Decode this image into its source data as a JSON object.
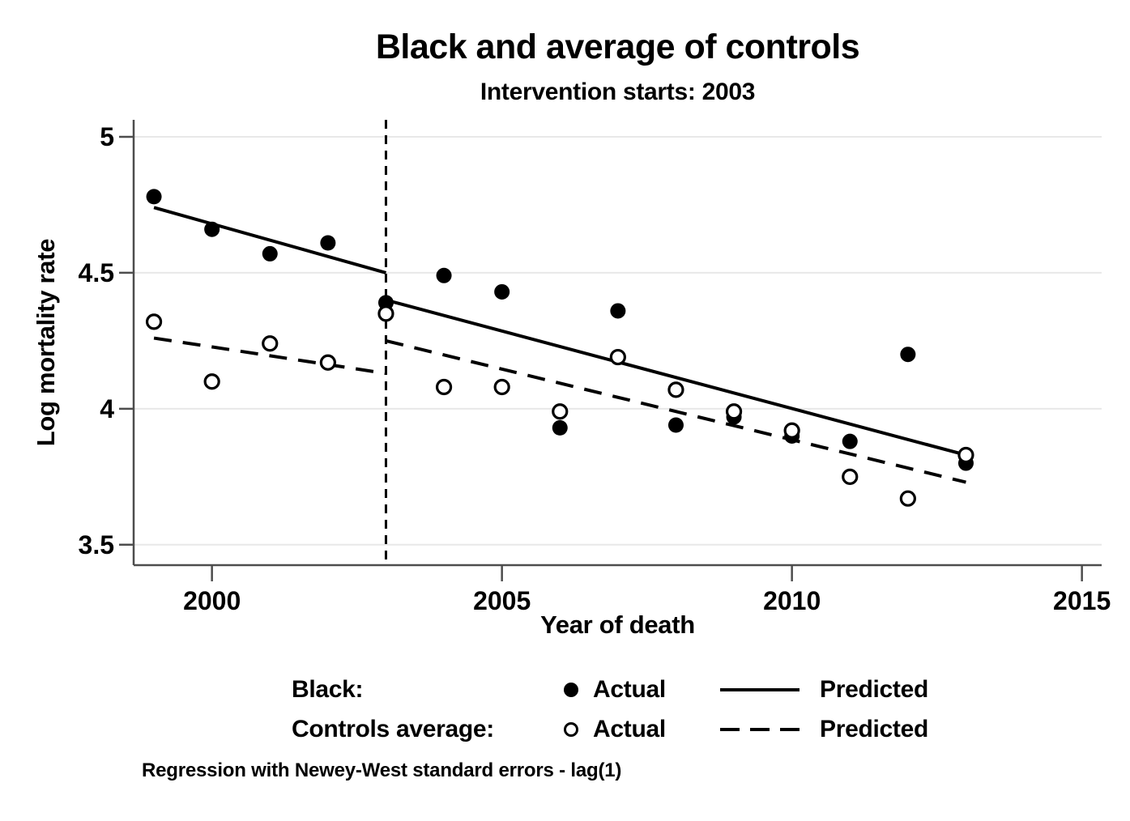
{
  "chart_data": {
    "type": "scatter",
    "title": "Black and average of controls",
    "subtitle": "Intervention starts: 2003",
    "xlabel": "Year of death",
    "ylabel": "Log mortality rate",
    "xlim": [
      1998.65,
      2015.34
    ],
    "ylim": [
      3.425,
      5.0625
    ],
    "xticks": [
      2000,
      2005,
      2010,
      2015
    ],
    "yticks": [
      3.5,
      4,
      4.5,
      5
    ],
    "ytick_labels": [
      "3.5",
      "4",
      "4.5",
      "5"
    ],
    "grid": "horizontal-gridlines-on",
    "legend_position": "bottom",
    "intervention": {
      "x": 2003,
      "style": "dashed-vertical"
    },
    "x": [
      1999,
      2000,
      2001,
      2002,
      2003,
      2004,
      2005,
      2006,
      2007,
      2008,
      2009,
      2010,
      2011,
      2012,
      2013
    ],
    "series": [
      {
        "name": "Black: Actual",
        "kind": "scatter",
        "marker": "filled-circle",
        "values": [
          4.78,
          4.66,
          4.57,
          4.61,
          4.39,
          4.49,
          4.43,
          3.93,
          4.36,
          3.94,
          3.97,
          3.9,
          3.88,
          4.2,
          3.8
        ]
      },
      {
        "name": "Black: Predicted",
        "kind": "line",
        "style": "solid",
        "segments": [
          {
            "x": [
              1999,
              2003
            ],
            "y": [
              4.74,
              4.5
            ]
          },
          {
            "x": [
              2003,
              2013
            ],
            "y": [
              4.4,
              3.83
            ]
          }
        ]
      },
      {
        "name": "Controls average: Actual",
        "kind": "scatter",
        "marker": "open-circle",
        "values": [
          4.32,
          4.1,
          4.24,
          4.17,
          4.35,
          4.08,
          4.08,
          3.99,
          4.19,
          4.07,
          3.99,
          3.92,
          3.75,
          3.67,
          3.83
        ]
      },
      {
        "name": "Controls average: Predicted",
        "kind": "line",
        "style": "dashed",
        "segments": [
          {
            "x": [
              1999,
              2003
            ],
            "y": [
              4.26,
              4.13
            ]
          },
          {
            "x": [
              2003,
              2013
            ],
            "y": [
              4.25,
              3.73
            ]
          }
        ]
      }
    ]
  },
  "legend": {
    "rows": [
      {
        "label": "Black:",
        "marker": "filled-circle-icon",
        "actual": "Actual",
        "line": "solid-line-icon",
        "predicted": "Predicted"
      },
      {
        "label": "Controls average:",
        "marker": "open-circle-icon",
        "actual": "Actual",
        "line": "dashed-line-icon",
        "predicted": "Predicted"
      }
    ]
  },
  "footnote": "Regression with Newey-West standard errors - lag(1)",
  "colors": {
    "text": "#000000",
    "marker": "#000000",
    "line": "#000000",
    "axis": "#4d4d4d",
    "grid": "#e8e8e8",
    "background": "#ffffff"
  }
}
